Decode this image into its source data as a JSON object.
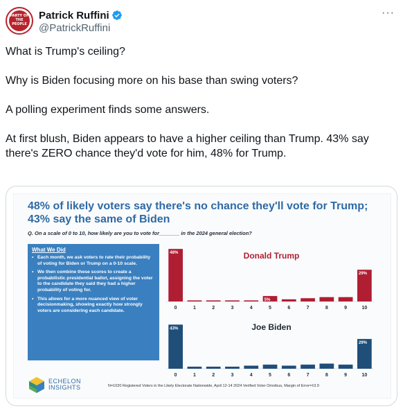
{
  "author": {
    "display_name": "Patrick Ruffini",
    "handle": "@PatrickRuffini",
    "avatar_text": "PARTY OF THE PEOPLE"
  },
  "more_label": "···",
  "tweet": {
    "paragraphs": [
      "What is Trump's ceiling?",
      "Why is Biden focusing more on his base than swing voters?",
      "A polling experiment finds some answers.",
      "At first blush, Biden appears to have a higher ceiling than Trump. 43% say there's ZERO chance they'd vote for him, 48% for Trump."
    ]
  },
  "slide": {
    "title": "48% of likely voters say there's no chance they'll vote for Trump; 43% say the same of Biden",
    "question": "Q. On a scale of 0 to 10, how likely are you to vote for_______ in the 2024 general election?",
    "what_we_did": {
      "title": "What We Did",
      "items": [
        "Each month, we ask voters to rate their probability of voting for Biden or Trump on a 0-10 scale.",
        "We then combine these scores to create a probabilistic presidential ballot, assigning the voter to the candidate they said they had a higher probability of voting for.",
        "This allows for a more nuanced view of voter decisionmaking, showing exactly how strongly voters are considering each candidate."
      ]
    },
    "logo_line1": "ECHELON",
    "logo_line2": "INSIGHTS",
    "footnote": "N=1020 Registered Voters in the Likely Electorate Nationwide, April 12-14 2024 Verified Voter Omnibus, Margin of Error=±3.9"
  },
  "chart_data": [
    {
      "type": "bar",
      "title": "Donald Trump",
      "categories": [
        "0",
        "1",
        "2",
        "3",
        "4",
        "5",
        "6",
        "7",
        "8",
        "9",
        "10"
      ],
      "values": [
        48,
        1,
        1,
        1,
        1,
        5,
        2,
        3,
        4,
        4,
        29
      ],
      "value_labels": [
        "48%",
        "",
        "",
        "",
        "",
        "5%",
        "",
        "",
        "",
        "",
        "29%"
      ],
      "color": "#b01e33",
      "ylim": [
        0,
        50
      ]
    },
    {
      "type": "bar",
      "title": "Joe Biden",
      "categories": [
        "0",
        "1",
        "2",
        "3",
        "4",
        "5",
        "6",
        "7",
        "8",
        "9",
        "10"
      ],
      "values": [
        43,
        2,
        2,
        2,
        3,
        4,
        3,
        4,
        5,
        4,
        29
      ],
      "value_labels": [
        "43%",
        "",
        "",
        "",
        "",
        "",
        "",
        "",
        "",
        "",
        "29%"
      ],
      "color": "#1f4e79",
      "ylim": [
        0,
        50
      ]
    }
  ]
}
